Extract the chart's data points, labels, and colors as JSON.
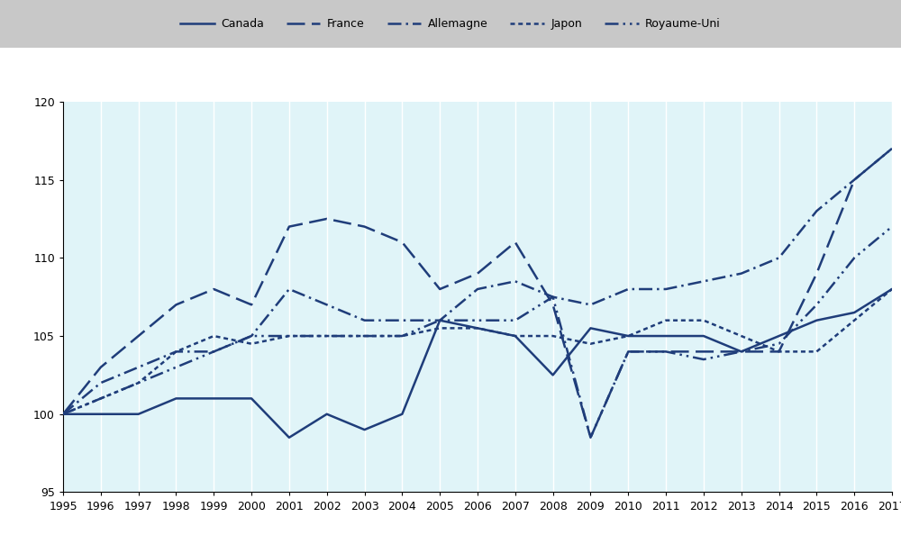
{
  "years": [
    1995,
    1996,
    1997,
    1998,
    1999,
    2000,
    2001,
    2002,
    2003,
    2004,
    2005,
    2006,
    2007,
    2008,
    2009,
    2010,
    2011,
    2012,
    2013,
    2014,
    2015,
    2016,
    2017
  ],
  "Canada": [
    100,
    100,
    100,
    101,
    101,
    101,
    98.5,
    100,
    99,
    100,
    106,
    105.5,
    105,
    102.5,
    105.5,
    105,
    105,
    105,
    104,
    105,
    106,
    106.5,
    108
  ],
  "France": [
    100,
    103,
    105,
    107,
    108,
    107,
    112,
    112.5,
    112,
    111,
    108,
    109,
    111,
    107,
    98.5,
    104,
    104,
    104,
    104,
    104,
    109,
    115,
    117
  ],
  "Allemagne": [
    100,
    102,
    103,
    104,
    104,
    105,
    108,
    107,
    106,
    106,
    106,
    108,
    108.5,
    107.5,
    107,
    108,
    108,
    108.5,
    109,
    110,
    113,
    115,
    117
  ],
  "Japon": [
    100,
    101,
    102,
    104,
    105,
    104.5,
    105,
    105,
    105,
    105,
    105.5,
    105.5,
    105,
    105,
    104.5,
    105,
    106,
    106,
    105,
    104,
    104,
    106,
    108
  ],
  "Royaume-Uni": [
    100,
    101,
    102,
    103,
    104,
    105,
    105,
    105,
    105,
    105,
    106,
    106,
    106,
    107.5,
    98.5,
    104,
    104,
    103.5,
    104,
    104.5,
    107,
    110,
    112
  ],
  "color": "#1f3d7a",
  "plot_bg_color": "#e0f4f8",
  "legend_bg": "#c8c8c8",
  "ylim": [
    95,
    120
  ],
  "yticks": [
    95,
    100,
    105,
    110,
    115,
    120
  ],
  "xlim_min": 1995,
  "xlim_max": 2017
}
